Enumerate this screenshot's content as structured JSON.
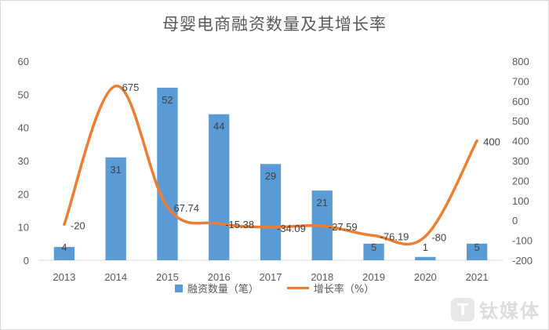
{
  "chart_data": {
    "type": "bar",
    "title": "母婴电商融资数量及其增长率",
    "categories": [
      "2013",
      "2014",
      "2015",
      "2016",
      "2017",
      "2018",
      "2019",
      "2020",
      "2021"
    ],
    "series": [
      {
        "name": "融资数量（笔）",
        "type": "bar",
        "axis": "left",
        "values": [
          4,
          31,
          52,
          44,
          29,
          21,
          5,
          1,
          5
        ],
        "labels": [
          "4",
          "31",
          "52",
          "44",
          "29",
          "21",
          "5",
          "1",
          "5"
        ]
      },
      {
        "name": "增长率（%）",
        "type": "line",
        "axis": "right",
        "values": [
          -20,
          675,
          67.74,
          -15.38,
          -34.09,
          -27.59,
          -76.19,
          -80,
          400
        ],
        "labels": [
          "-20",
          "675",
          "67.74",
          "-15.38",
          "-34.09",
          "-27.59",
          "-76.19",
          "-80",
          "400"
        ]
      }
    ],
    "y_left": {
      "min": 0,
      "max": 60,
      "ticks": [
        "0",
        "10",
        "20",
        "30",
        "40",
        "50",
        "60"
      ]
    },
    "y_right": {
      "min": -200,
      "max": 800,
      "ticks": [
        "-200",
        "-100",
        "0",
        "100",
        "200",
        "300",
        "400",
        "500",
        "600",
        "700",
        "800"
      ]
    },
    "grid": false,
    "legend_position": "bottom",
    "colors": {
      "bar": "#5b9bd5",
      "line": "#ed7d31"
    }
  },
  "watermark": {
    "logo_glyph": "T",
    "text": "钛媒体"
  }
}
